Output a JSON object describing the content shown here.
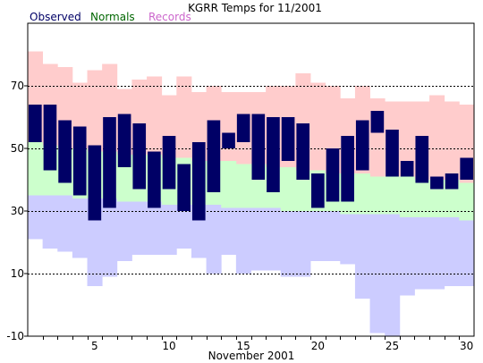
{
  "chart_data": {
    "type": "bar",
    "title": "KGRR Temps for 11/2001",
    "xlabel": "November 2001",
    "ylabel": "",
    "xlim": [
      1,
      30
    ],
    "ylim": [
      -10,
      90
    ],
    "yticks": [
      -10,
      10,
      30,
      50,
      70
    ],
    "xticks": [
      5,
      10,
      15,
      20,
      25,
      30
    ],
    "grid": "dashed-horizontal",
    "legend": "top-left",
    "colors": {
      "observed": "#000066",
      "normals": "#ccffcc",
      "records": "#ffcccc",
      "record_low": "#ccccff",
      "observed_legend": "#000066",
      "normals_legend": "#006600",
      "records_legend": "#cc66cc"
    },
    "legend_labels": {
      "observed": "Observed",
      "normals": "Normals",
      "records": "Records"
    },
    "days": [
      1,
      2,
      3,
      4,
      5,
      6,
      7,
      8,
      9,
      10,
      11,
      12,
      13,
      14,
      15,
      16,
      17,
      18,
      19,
      20,
      21,
      22,
      23,
      24,
      25,
      26,
      27,
      28,
      29,
      30
    ],
    "series": [
      {
        "name": "Records",
        "high": [
          81,
          77,
          76,
          71,
          75,
          77,
          69,
          72,
          73,
          67,
          73,
          68,
          70,
          68,
          68,
          68,
          70,
          70,
          74,
          71,
          70,
          66,
          70,
          66,
          65,
          65,
          65,
          67,
          65,
          64
        ],
        "low": [
          21,
          18,
          17,
          15,
          6,
          9,
          14,
          16,
          16,
          16,
          18,
          15,
          10,
          16,
          10,
          11,
          11,
          9,
          9,
          14,
          14,
          13,
          2,
          -9,
          -10,
          3,
          5,
          5,
          6,
          6
        ]
      },
      {
        "name": "Normals",
        "high": [
          52,
          51,
          50,
          50,
          49,
          49,
          48,
          48,
          48,
          47,
          47,
          46,
          46,
          46,
          45,
          45,
          44,
          44,
          43,
          43,
          42,
          42,
          42,
          41,
          41,
          41,
          40,
          40,
          40,
          39
        ],
        "low": [
          35,
          35,
          35,
          34,
          34,
          34,
          33,
          33,
          33,
          32,
          32,
          32,
          32,
          31,
          31,
          31,
          31,
          30,
          30,
          30,
          30,
          29,
          29,
          29,
          29,
          28,
          28,
          28,
          28,
          27
        ]
      },
      {
        "name": "Observed",
        "high": [
          64,
          64,
          59,
          57,
          51,
          60,
          61,
          58,
          49,
          54,
          45,
          52,
          59,
          55,
          61,
          61,
          60,
          60,
          58,
          42,
          50,
          54,
          59,
          62,
          56,
          46,
          54,
          41,
          42,
          47
        ],
        "low": [
          52,
          43,
          39,
          35,
          27,
          31,
          44,
          37,
          31,
          37,
          30,
          27,
          36,
          50,
          52,
          40,
          36,
          46,
          40,
          31,
          33,
          33,
          43,
          55,
          41,
          41,
          39,
          37,
          37,
          40
        ]
      }
    ]
  }
}
